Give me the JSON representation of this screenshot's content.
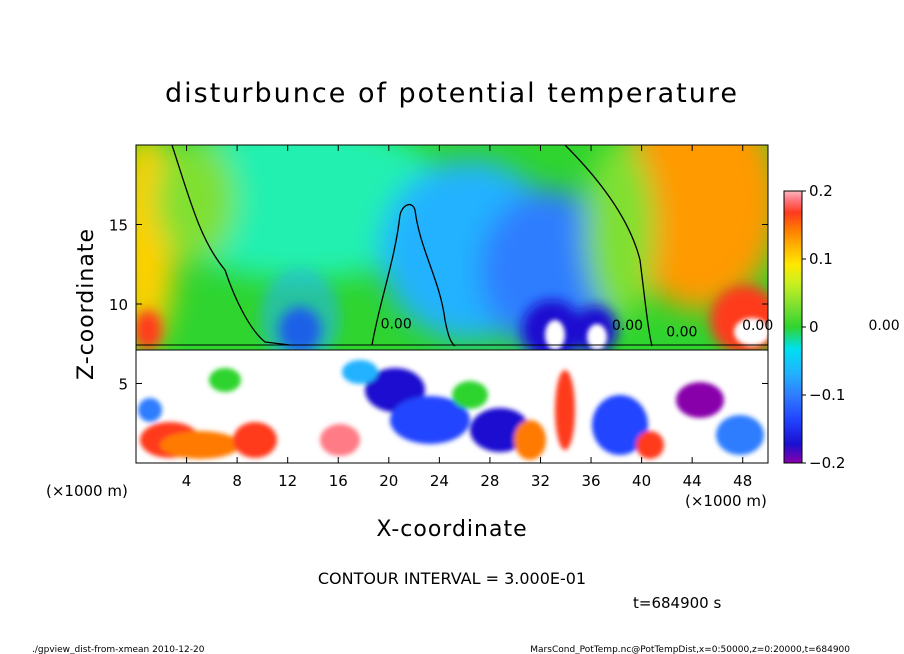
{
  "chart_data": {
    "type": "heatmap",
    "title": "disturbunce of potential temperature",
    "xlabel": "X-coordinate",
    "ylabel": "Z-coordinate",
    "x_unit_left": "(×1000 m)",
    "x_unit_right": "(×1000 m)",
    "xlim": [
      0,
      50
    ],
    "ylim": [
      0,
      20
    ],
    "x_ticks": [
      4,
      8,
      12,
      16,
      20,
      24,
      28,
      32,
      36,
      40,
      44,
      48
    ],
    "y_ticks": [
      5,
      10,
      15
    ],
    "colorbar": {
      "range": [
        -0.2,
        0.2
      ],
      "ticks": [
        "0.2",
        "0.1",
        "0",
        "−0.1",
        "−0.2"
      ],
      "tick_values": [
        0.2,
        0.1,
        0,
        -0.1,
        -0.2
      ],
      "colors": [
        "#8800aa",
        "#1a10d0",
        "#2244ff",
        "#2f7dff",
        "#21b2ff",
        "#00e0f0",
        "#20f0b0",
        "#45e27a",
        "#2fd42f",
        "#7fe030",
        "#c8f020",
        "#ffe800",
        "#ffb000",
        "#ff7a00",
        "#ff3a1e",
        "#ff7c86",
        "#ffb7be"
      ]
    },
    "contour_labels": [
      "0.00",
      "0.00",
      "0.00",
      "0.00",
      "0.00"
    ],
    "field": {
      "description_free": true,
      "upper_layer_z_min": 7.5,
      "features": [
        {
          "kind": "negative-core",
          "x": 13.5,
          "z": 8.8,
          "value": -0.2
        },
        {
          "kind": "negative-core",
          "x": 30.5,
          "z": 10.5,
          "value": -0.2
        },
        {
          "kind": "negative-core",
          "x": 35.0,
          "z": 9.0,
          "value": -0.2
        },
        {
          "kind": "positive-core",
          "x": 49.0,
          "z": 9.0,
          "value": 0.2
        },
        {
          "kind": "positive-core",
          "x": 1.0,
          "z": 9.5,
          "value": 0.15
        }
      ]
    },
    "annotation": "CONTOUR INTERVAL = 3.000E-01",
    "time_label": "t=684900 s"
  },
  "footer": {
    "left": "./gpview_dist-from-xmean  2010-12-20",
    "right": "MarsCond_PotTemp.nc@PotTempDist,x=0:50000,z=0:20000,t=684900"
  }
}
